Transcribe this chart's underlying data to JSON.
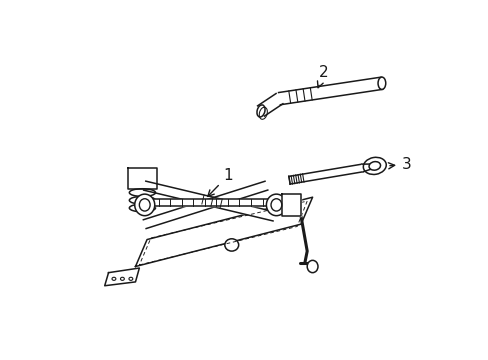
{
  "background_color": "#ffffff",
  "line_color": "#1a1a1a",
  "line_width": 1.1,
  "figsize": [
    4.89,
    3.6
  ],
  "dpi": 100,
  "label_1": "1",
  "label_2": "2",
  "label_3": "3"
}
